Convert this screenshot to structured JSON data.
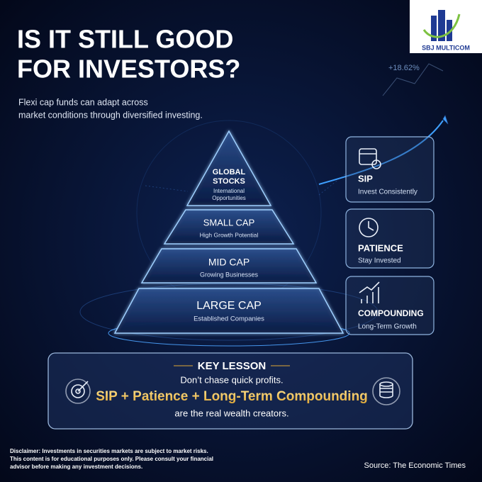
{
  "logo": "SBJ MULTICOM",
  "ticker": "+18.62%",
  "title": [
    "IS IT STILL GOOD",
    "FOR INVESTORS?"
  ],
  "subtitle": [
    "Flexi cap funds can adapt across",
    "market conditions through diversified investing."
  ],
  "pyramid": [
    {
      "label": [
        "GLOBAL",
        "STOCKS"
      ],
      "caption": [
        "International",
        "Opportunities"
      ]
    },
    {
      "label": [
        "SMALL CAP"
      ],
      "caption": [
        "High Growth Potential"
      ]
    },
    {
      "label": [
        "MID CAP"
      ],
      "caption": [
        "Growing Businesses"
      ]
    },
    {
      "label": [
        "LARGE CAP"
      ],
      "caption": [
        "Established Companies"
      ]
    }
  ],
  "cards": [
    {
      "title": "SIP",
      "text": "Invest Consistently"
    },
    {
      "title": "PATIENCE",
      "text": "Stay Invested"
    },
    {
      "title": "COMPOUNDING",
      "text": "Long-Term Growth"
    }
  ],
  "lesson": {
    "heading": "KEY LESSON",
    "line1": "Don’t chase quick profits.",
    "highlight": "SIP + Patience + Long-Term Compounding",
    "line2": "are the real wealth creators."
  },
  "disclaimer": [
    "Disclaimer: Investments in securities markets are subject to market risks.",
    "This content is for educational purposes only. Please consult your financial",
    "advisor before making any investment decisions."
  ],
  "source": "Source: The Economic Times"
}
